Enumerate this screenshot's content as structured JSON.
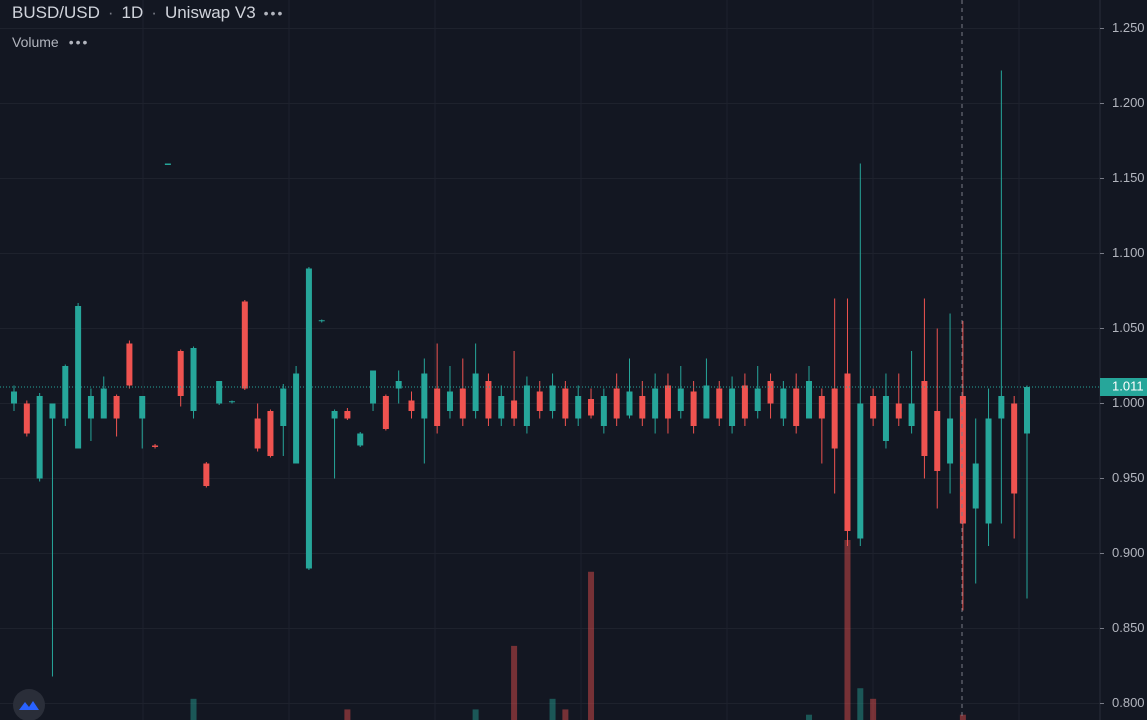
{
  "chart_data": {
    "type": "candlestick",
    "symbol": "BUSD/USD",
    "interval": "1D",
    "exchange": "Uniswap V3",
    "volume_label": "Volume",
    "up_color": "#26a69a",
    "down_color": "#ef5350",
    "ylim": [
      0.789,
      1.269
    ],
    "yticks": [
      {
        "value": 0.8,
        "label": "0.800"
      },
      {
        "value": 0.85,
        "label": "0.850"
      },
      {
        "value": 0.9,
        "label": "0.900"
      },
      {
        "value": 0.95,
        "label": "0.950"
      },
      {
        "value": 1.0,
        "label": "1.000"
      },
      {
        "value": 1.05,
        "label": "1.050"
      },
      {
        "value": 1.1,
        "label": "1.100"
      },
      {
        "value": 1.15,
        "label": "1.150"
      },
      {
        "value": 1.2,
        "label": "1.200"
      },
      {
        "value": 1.25,
        "label": "1.250"
      }
    ],
    "grid": true,
    "last_price": {
      "value": 1.011,
      "label": "1.011"
    },
    "open": [
      1.0,
      1.0,
      0.95,
      0.99,
      0.99,
      0.97,
      0.99,
      0.99,
      1.005,
      1.04,
      0.99,
      0.972,
      1.159,
      1.035,
      0.995,
      0.96,
      1.0,
      1.001,
      1.068,
      0.99,
      0.995,
      0.985,
      0.96,
      0.89,
      1.055,
      0.99,
      0.995,
      0.972,
      1.0,
      1.005,
      1.01,
      1.002,
      0.99,
      1.01,
      0.995,
      1.01,
      0.995,
      1.015,
      0.99,
      1.002,
      0.985,
      1.008,
      0.995,
      1.01,
      0.99,
      1.003,
      0.985,
      1.01,
      0.992,
      1.005,
      0.99,
      1.012,
      0.995,
      1.008,
      0.99,
      1.01,
      0.985,
      1.012,
      0.995,
      1.015,
      0.99,
      1.01,
      0.99,
      1.005,
      1.01,
      1.02,
      0.91,
      1.005,
      0.975,
      1.0,
      0.985,
      1.015,
      0.995,
      0.96,
      1.005,
      0.93,
      0.92,
      0.99,
      1.0,
      0.98
    ],
    "high": [
      1.012,
      1.002,
      1.007,
      1.0,
      1.026,
      1.067,
      1.01,
      1.018,
      1.006,
      1.042,
      1.005,
      0.973,
      1.16,
      1.036,
      1.038,
      0.961,
      1.015,
      1.002,
      1.069,
      1.0,
      0.996,
      1.013,
      1.025,
      1.091,
      1.056,
      0.996,
      0.997,
      0.981,
      1.022,
      1.006,
      1.022,
      1.008,
      1.03,
      1.04,
      1.025,
      1.03,
      1.04,
      1.02,
      1.012,
      1.035,
      1.018,
      1.015,
      1.02,
      1.015,
      1.012,
      1.01,
      1.01,
      1.02,
      1.03,
      1.015,
      1.02,
      1.02,
      1.025,
      1.015,
      1.03,
      1.015,
      1.018,
      1.02,
      1.025,
      1.02,
      1.015,
      1.02,
      1.025,
      1.01,
      1.07,
      1.07,
      1.16,
      1.01,
      1.02,
      1.02,
      1.035,
      1.07,
      1.05,
      1.06,
      1.055,
      0.99,
      1.01,
      1.222,
      1.005,
      1.012
    ],
    "low": [
      0.995,
      0.978,
      0.948,
      0.818,
      0.985,
      0.97,
      0.975,
      0.99,
      0.978,
      1.01,
      0.97,
      0.97,
      1.159,
      0.998,
      0.99,
      0.944,
      0.999,
      1.0,
      1.009,
      0.968,
      0.964,
      0.965,
      0.962,
      0.889,
      1.054,
      0.95,
      0.989,
      0.971,
      0.995,
      0.982,
      1.0,
      0.99,
      0.96,
      0.98,
      0.99,
      0.985,
      0.99,
      0.985,
      0.985,
      0.985,
      0.98,
      0.99,
      0.99,
      0.985,
      0.985,
      0.99,
      0.98,
      0.985,
      0.99,
      0.985,
      0.98,
      0.98,
      0.99,
      0.98,
      0.99,
      0.985,
      0.98,
      0.985,
      0.99,
      0.99,
      0.985,
      0.98,
      0.99,
      0.96,
      0.94,
      0.905,
      0.905,
      0.985,
      0.97,
      0.985,
      0.98,
      0.95,
      0.93,
      0.94,
      0.862,
      0.88,
      0.905,
      0.92,
      0.91,
      0.87
    ],
    "close": [
      1.008,
      0.98,
      1.005,
      1.0,
      1.025,
      1.065,
      1.005,
      1.01,
      0.99,
      1.012,
      1.005,
      0.971,
      1.16,
      1.005,
      1.037,
      0.945,
      1.015,
      1.0015,
      1.01,
      0.97,
      0.965,
      1.01,
      1.02,
      1.09,
      1.0555,
      0.995,
      0.99,
      0.98,
      1.022,
      0.983,
      1.015,
      0.995,
      1.02,
      0.985,
      1.008,
      0.99,
      1.02,
      0.99,
      1.005,
      0.99,
      1.012,
      0.995,
      1.012,
      0.99,
      1.005,
      0.992,
      1.005,
      0.99,
      1.008,
      0.99,
      1.01,
      0.99,
      1.01,
      0.985,
      1.012,
      0.99,
      1.01,
      0.99,
      1.01,
      1.0,
      1.01,
      0.985,
      1.015,
      0.99,
      0.97,
      0.915,
      1.0,
      0.99,
      1.005,
      0.99,
      1.0,
      0.965,
      0.955,
      0.99,
      0.92,
      0.96,
      0.99,
      1.005,
      0.94,
      1.011
    ],
    "volume": [
      null,
      null,
      null,
      null,
      null,
      null,
      null,
      null,
      null,
      null,
      null,
      null,
      null,
      null,
      0.2,
      null,
      null,
      null,
      null,
      null,
      null,
      null,
      null,
      null,
      null,
      null,
      0.1,
      null,
      null,
      null,
      null,
      null,
      null,
      null,
      null,
      null,
      0.1,
      null,
      null,
      0.7,
      null,
      null,
      0.2,
      0.1,
      null,
      1.4,
      null,
      null,
      null,
      null,
      null,
      null,
      null,
      null,
      null,
      null,
      null,
      null,
      null,
      null,
      null,
      null,
      0.05,
      null,
      null,
      1.7,
      0.3,
      0.2,
      null,
      null,
      null,
      null,
      null,
      null,
      0.05,
      null,
      null,
      null,
      null,
      null
    ]
  }
}
